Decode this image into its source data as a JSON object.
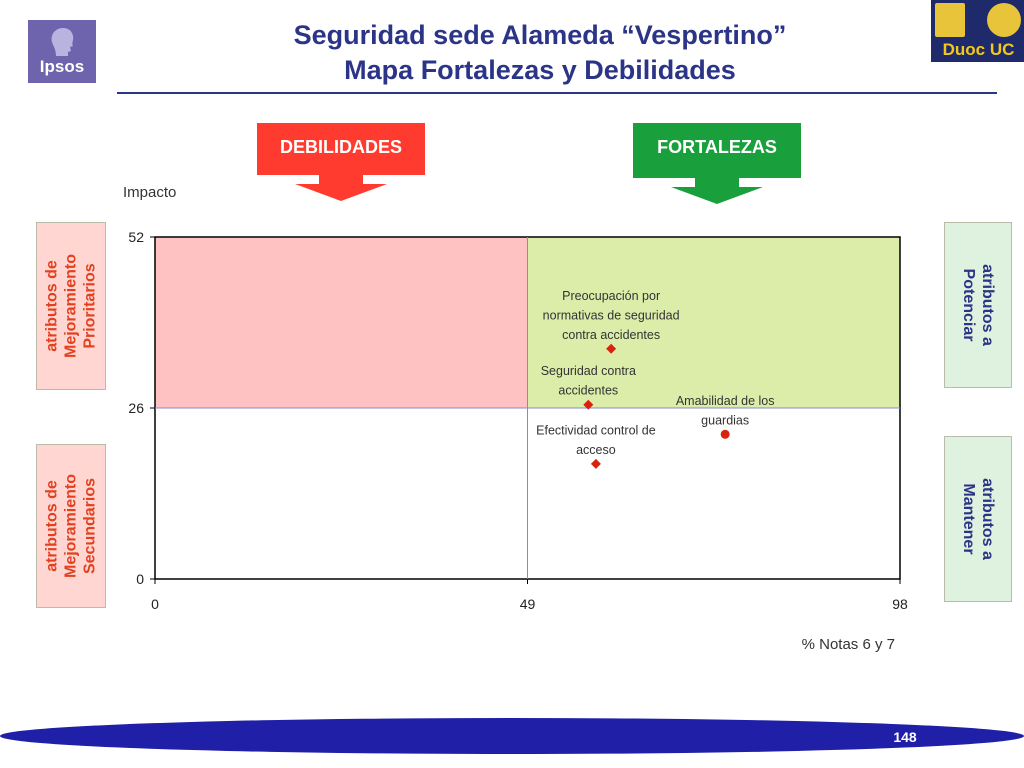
{
  "logos": {
    "left": "Ipsos",
    "right": "Duoc UC"
  },
  "title": {
    "line1": "Seguridad sede Alameda “Vespertino”",
    "line2": "Mapa Fortalezas y Debilidades"
  },
  "boxes": {
    "debilidades": "DEBILIDADES",
    "fortalezas": "FORTALEZAS"
  },
  "side_labels": {
    "top_left": [
      "atributos de",
      "Mejoramiento",
      "Prioritarios"
    ],
    "bottom_left": [
      "atributos de",
      "Mejoramiento",
      "Secundarios"
    ],
    "top_right": [
      "atributos a",
      "Potenciar"
    ],
    "bottom_right": [
      "atributos a",
      "Mantener"
    ]
  },
  "colors": {
    "title": "#2b3486",
    "debilidades": "#ff3b2f",
    "fortalezas": "#19a03c",
    "quadrant_pink": "#ffc2c2",
    "quadrant_green": "#dcedaa",
    "marker": "#d9230f",
    "footer_band": "#1f1fa8"
  },
  "page_number": "148",
  "chart_data": {
    "type": "scatter",
    "xlabel": "% Notas 6 y 7",
    "ylabel": "Impacto",
    "xlim": [
      0,
      98
    ],
    "ylim": [
      0,
      52
    ],
    "xticks": [
      "0",
      "49",
      "98"
    ],
    "yticks": [
      "0",
      "26",
      "52"
    ],
    "x_divider": 49,
    "y_divider": 26,
    "grid": false,
    "points": [
      {
        "label": [
          "Preocupación por",
          "normativas de seguridad",
          "contra accidentes"
        ],
        "x": 60,
        "y": 35,
        "marker": "diamond"
      },
      {
        "label": [
          "Seguridad contra",
          "accidentes"
        ],
        "x": 57,
        "y": 26.5,
        "marker": "diamond"
      },
      {
        "label": [
          "Amabilidad de los",
          "guardias"
        ],
        "x": 75,
        "y": 22,
        "marker": "circle"
      },
      {
        "label": [
          "Efectividad control de",
          "acceso"
        ],
        "x": 58,
        "y": 17.5,
        "marker": "diamond"
      }
    ]
  }
}
